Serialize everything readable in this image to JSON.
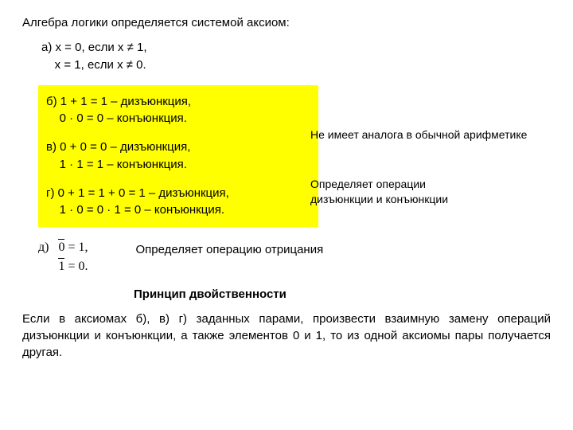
{
  "title": "Алгебра логики определяется системой аксиом:",
  "axiom_a": {
    "line1": "а) x = 0, если x ≠ 1,",
    "line2": "    x = 1, если x ≠ 0."
  },
  "highlight": {
    "b": {
      "line1": "б) 1 + 1 = 1 – дизъюнкция,",
      "line2": "    0 · 0 = 0 – конъюнкция."
    },
    "v": {
      "line1": "в) 0 + 0 = 0 – дизъюнкция,",
      "line2": "    1 · 1 = 1 – конъюнкция."
    },
    "g": {
      "line1": "г) 0 + 1 = 1 + 0 = 1 – дизъюнкция,",
      "line2": "    1 · 0 = 0 · 1 = 0 – конъюнкция."
    }
  },
  "side": {
    "note1": "Не имеет аналога в обычной арифметике",
    "note2_l1": "Определяет операции",
    "note2_l2": "дизъюнкции и конъюнкции"
  },
  "axiom_d": {
    "label": "д)",
    "eq1_pre": "0",
    "eq1_post": " = 1,",
    "eq2_pre": "1",
    "eq2_post": " = 0.",
    "note": "Определяет операцию отрицания"
  },
  "duality": {
    "title": "Принцип двойственности",
    "text": "Если в аксиомах б), в) г) заданных парами, произвести взаимную замену операций дизъюнкции и конъюнкции, а также элементов 0 и 1, то из одной аксиомы пары получается другая."
  },
  "colors": {
    "highlight_bg": "#ffff00",
    "text": "#000000",
    "bg": "#ffffff"
  }
}
